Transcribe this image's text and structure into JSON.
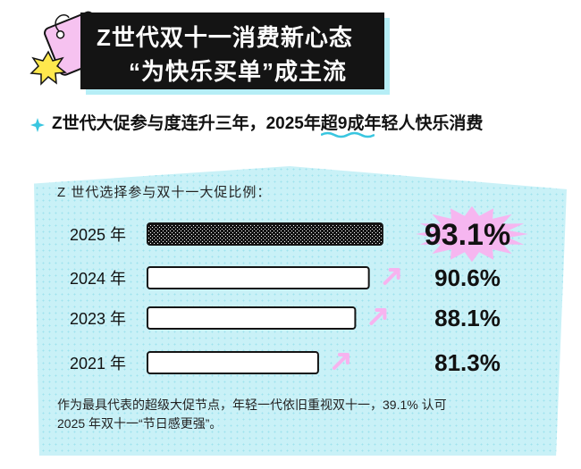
{
  "header": {
    "title_line1": "Z世代双十一消费新心态",
    "title_line2": "“为快乐买单”成主流"
  },
  "subtitle": {
    "before": "Z世代大促参与度连升三年，2025年",
    "highlight": "超9成",
    "after": "年轻人快乐消费"
  },
  "panel": {
    "label": "Z 世代选择参与双十一大促比例："
  },
  "chart_data": {
    "type": "bar",
    "orientation": "horizontal",
    "categories": [
      "2025 年",
      "2024 年",
      "2023 年",
      "2021 年"
    ],
    "values": [
      93.1,
      90.6,
      88.1,
      81.3
    ],
    "value_labels": [
      "93.1%",
      "90.6%",
      "88.1%",
      "81.3%"
    ],
    "unit": "%",
    "highlight_index": 0,
    "colors": {
      "highlight_fill": "#141414",
      "bar_fill": "#ffffff",
      "bar_stroke": "#141414",
      "burst": "#f6b6f0",
      "arrow": "#f7b3ef"
    }
  },
  "footnote": {
    "line1": "作为最具代表的超级大促节点，年轻一代依旧重视双十一，39.1% 认可",
    "line2": "2025 年双十一“节日感更强”。"
  },
  "colors": {
    "title_bg": "#141414",
    "title_shadow": "#b6eef6",
    "panel_bg": "#c9f1f7",
    "accent_cyan": "#39c6e0",
    "accent_pink": "#f2a6ee",
    "wave": "#39c6e0"
  },
  "icons": {
    "deco": "price-tag-icon",
    "burst": "starburst-icon",
    "bullet": "sparkle-icon"
  }
}
